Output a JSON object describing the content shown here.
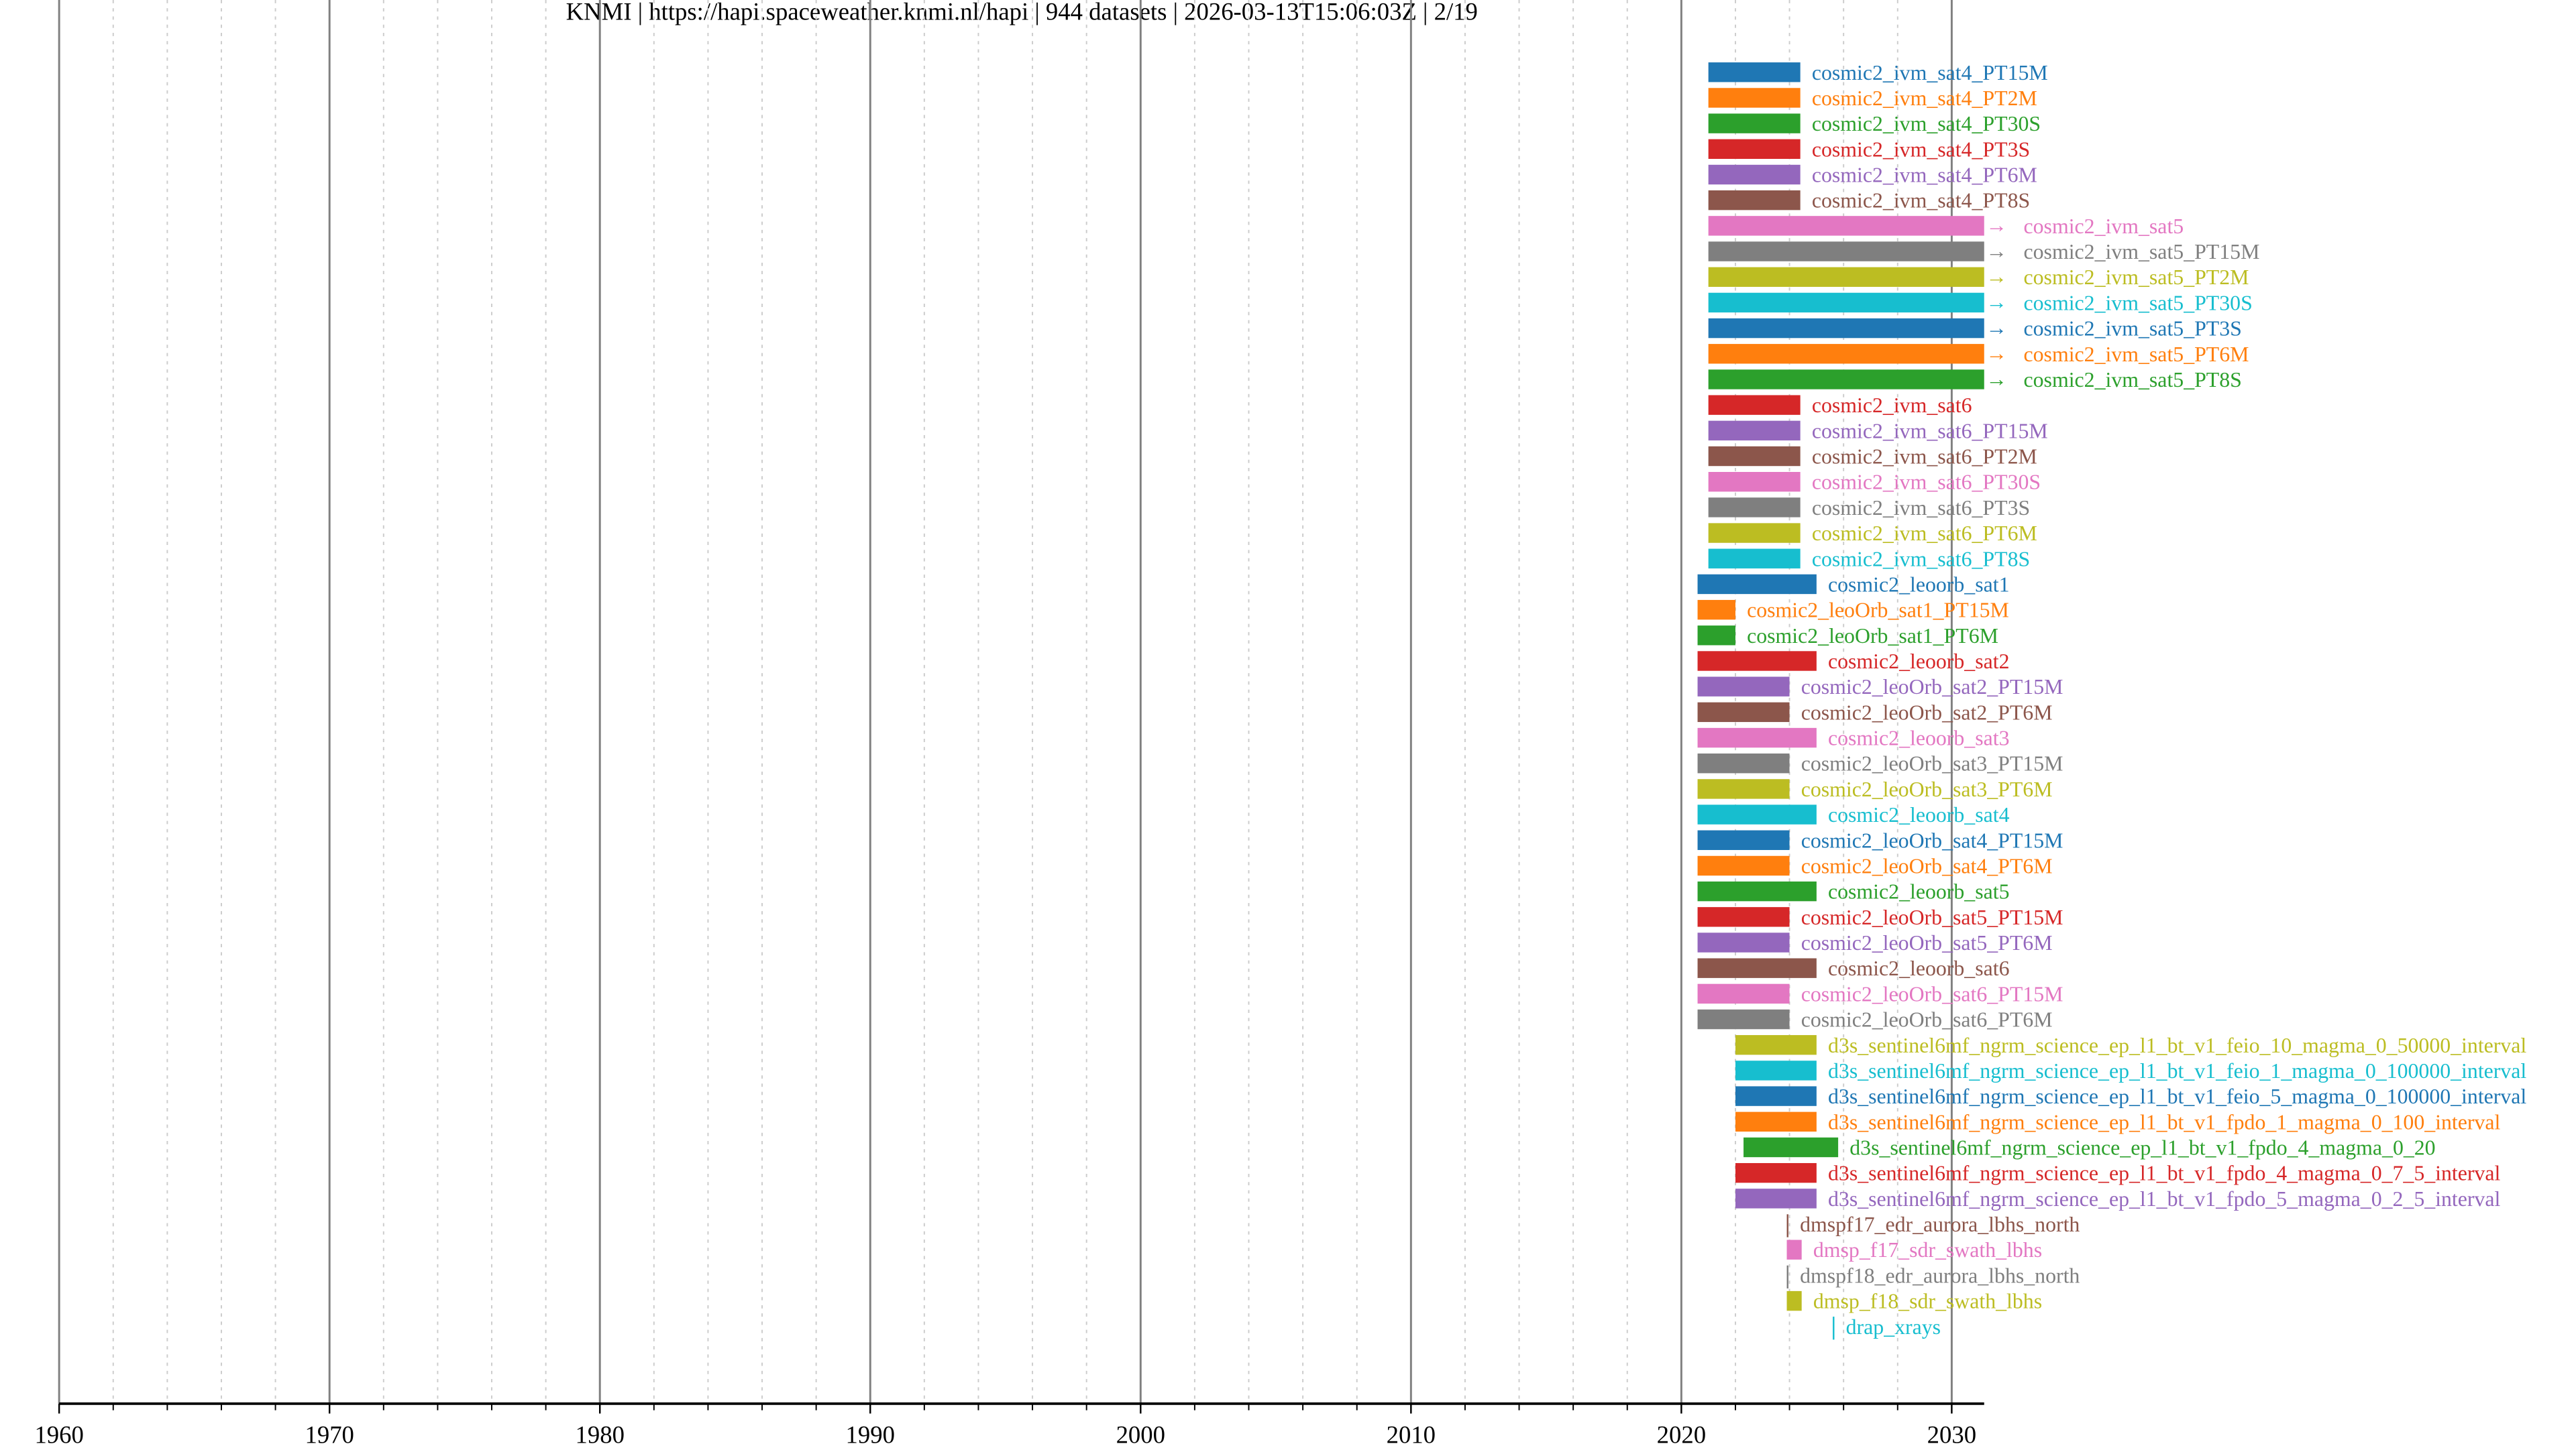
{
  "chart_data": {
    "type": "timeline",
    "title": "KNMI | https://hapi.spaceweather.knmi.nl/hapi | 944 datasets | 2026-03-13T15:06:03Z | 2/19",
    "xlabel": "",
    "ylabel": "",
    "xlim": [
      1960,
      2031.2
    ],
    "major_ticks": [
      1960,
      1970,
      1980,
      1990,
      2000,
      2010,
      2020,
      2030
    ],
    "tick_labels": [
      "1960",
      "1970",
      "1980",
      "1990",
      "2000",
      "2010",
      "2020",
      "2030"
    ],
    "minor_step": 2,
    "grid": true,
    "colors": [
      "#1f77b4",
      "#ff7f0e",
      "#2ca02c",
      "#d62728",
      "#9467bd",
      "#8c564b",
      "#e377c2",
      "#7f7f7f",
      "#bcbd22",
      "#17becf"
    ],
    "series": [
      {
        "name": "cosmic2_ivm_sat4_PT15M",
        "start": 2021.0,
        "stop": 2024.4,
        "ongoing": false
      },
      {
        "name": "cosmic2_ivm_sat4_PT2M",
        "start": 2021.0,
        "stop": 2024.4,
        "ongoing": false
      },
      {
        "name": "cosmic2_ivm_sat4_PT30S",
        "start": 2021.0,
        "stop": 2024.4,
        "ongoing": false
      },
      {
        "name": "cosmic2_ivm_sat4_PT3S",
        "start": 2021.0,
        "stop": 2024.4,
        "ongoing": false
      },
      {
        "name": "cosmic2_ivm_sat4_PT6M",
        "start": 2021.0,
        "stop": 2024.4,
        "ongoing": false
      },
      {
        "name": "cosmic2_ivm_sat4_PT8S",
        "start": 2021.0,
        "stop": 2024.4,
        "ongoing": false
      },
      {
        "name": "cosmic2_ivm_sat5",
        "start": 2021.0,
        "stop": 2031.2,
        "ongoing": true
      },
      {
        "name": "cosmic2_ivm_sat5_PT15M",
        "start": 2021.0,
        "stop": 2031.2,
        "ongoing": true
      },
      {
        "name": "cosmic2_ivm_sat5_PT2M",
        "start": 2021.0,
        "stop": 2031.2,
        "ongoing": true
      },
      {
        "name": "cosmic2_ivm_sat5_PT30S",
        "start": 2021.0,
        "stop": 2031.2,
        "ongoing": true
      },
      {
        "name": "cosmic2_ivm_sat5_PT3S",
        "start": 2021.0,
        "stop": 2031.2,
        "ongoing": true
      },
      {
        "name": "cosmic2_ivm_sat5_PT6M",
        "start": 2021.0,
        "stop": 2031.2,
        "ongoing": true
      },
      {
        "name": "cosmic2_ivm_sat5_PT8S",
        "start": 2021.0,
        "stop": 2031.2,
        "ongoing": true
      },
      {
        "name": "cosmic2_ivm_sat6",
        "start": 2021.0,
        "stop": 2024.4,
        "ongoing": false
      },
      {
        "name": "cosmic2_ivm_sat6_PT15M",
        "start": 2021.0,
        "stop": 2024.4,
        "ongoing": false
      },
      {
        "name": "cosmic2_ivm_sat6_PT2M",
        "start": 2021.0,
        "stop": 2024.4,
        "ongoing": false
      },
      {
        "name": "cosmic2_ivm_sat6_PT30S",
        "start": 2021.0,
        "stop": 2024.4,
        "ongoing": false
      },
      {
        "name": "cosmic2_ivm_sat6_PT3S",
        "start": 2021.0,
        "stop": 2024.4,
        "ongoing": false
      },
      {
        "name": "cosmic2_ivm_sat6_PT6M",
        "start": 2021.0,
        "stop": 2024.4,
        "ongoing": false
      },
      {
        "name": "cosmic2_ivm_sat6_PT8S",
        "start": 2021.0,
        "stop": 2024.4,
        "ongoing": false
      },
      {
        "name": "cosmic2_leoorb_sat1",
        "start": 2020.6,
        "stop": 2025.0,
        "ongoing": false
      },
      {
        "name": "cosmic2_leoOrb_sat1_PT15M",
        "start": 2020.6,
        "stop": 2022.0,
        "ongoing": false
      },
      {
        "name": "cosmic2_leoOrb_sat1_PT6M",
        "start": 2020.6,
        "stop": 2022.0,
        "ongoing": false
      },
      {
        "name": "cosmic2_leoorb_sat2",
        "start": 2020.6,
        "stop": 2025.0,
        "ongoing": false
      },
      {
        "name": "cosmic2_leoOrb_sat2_PT15M",
        "start": 2020.6,
        "stop": 2024.0,
        "ongoing": false
      },
      {
        "name": "cosmic2_leoOrb_sat2_PT6M",
        "start": 2020.6,
        "stop": 2024.0,
        "ongoing": false
      },
      {
        "name": "cosmic2_leoorb_sat3",
        "start": 2020.6,
        "stop": 2025.0,
        "ongoing": false
      },
      {
        "name": "cosmic2_leoOrb_sat3_PT15M",
        "start": 2020.6,
        "stop": 2024.0,
        "ongoing": false
      },
      {
        "name": "cosmic2_leoOrb_sat3_PT6M",
        "start": 2020.6,
        "stop": 2024.0,
        "ongoing": false
      },
      {
        "name": "cosmic2_leoorb_sat4",
        "start": 2020.6,
        "stop": 2025.0,
        "ongoing": false
      },
      {
        "name": "cosmic2_leoOrb_sat4_PT15M",
        "start": 2020.6,
        "stop": 2024.0,
        "ongoing": false
      },
      {
        "name": "cosmic2_leoOrb_sat4_PT6M",
        "start": 2020.6,
        "stop": 2024.0,
        "ongoing": false
      },
      {
        "name": "cosmic2_leoorb_sat5",
        "start": 2020.6,
        "stop": 2025.0,
        "ongoing": false
      },
      {
        "name": "cosmic2_leoOrb_sat5_PT15M",
        "start": 2020.6,
        "stop": 2024.0,
        "ongoing": false
      },
      {
        "name": "cosmic2_leoOrb_sat5_PT6M",
        "start": 2020.6,
        "stop": 2024.0,
        "ongoing": false
      },
      {
        "name": "cosmic2_leoorb_sat6",
        "start": 2020.6,
        "stop": 2025.0,
        "ongoing": false
      },
      {
        "name": "cosmic2_leoOrb_sat6_PT15M",
        "start": 2020.6,
        "stop": 2024.0,
        "ongoing": false
      },
      {
        "name": "cosmic2_leoOrb_sat6_PT6M",
        "start": 2020.6,
        "stop": 2024.0,
        "ongoing": false
      },
      {
        "name": "d3s_sentinel6mf_ngrm_science_ep_l1_bt_v1_feio_10_magma_0_50000_interval",
        "start": 2022.0,
        "stop": 2025.0,
        "ongoing": false
      },
      {
        "name": "d3s_sentinel6mf_ngrm_science_ep_l1_bt_v1_feio_1_magma_0_100000_interval",
        "start": 2022.0,
        "stop": 2025.0,
        "ongoing": false
      },
      {
        "name": "d3s_sentinel6mf_ngrm_science_ep_l1_bt_v1_feio_5_magma_0_100000_interval",
        "start": 2022.0,
        "stop": 2025.0,
        "ongoing": false
      },
      {
        "name": "d3s_sentinel6mf_ngrm_science_ep_l1_bt_v1_fpdo_1_magma_0_100_interval",
        "start": 2022.0,
        "stop": 2025.0,
        "ongoing": false
      },
      {
        "name": "d3s_sentinel6mf_ngrm_science_ep_l1_bt_v1_fpdo_4_magma_0_20",
        "start": 2022.3,
        "stop": 2025.8,
        "ongoing": false
      },
      {
        "name": "d3s_sentinel6mf_ngrm_science_ep_l1_bt_v1_fpdo_4_magma_0_7_5_interval",
        "start": 2022.0,
        "stop": 2025.0,
        "ongoing": false
      },
      {
        "name": "d3s_sentinel6mf_ngrm_science_ep_l1_bt_v1_fpdo_5_magma_0_2_5_interval",
        "start": 2022.0,
        "stop": 2025.0,
        "ongoing": false
      },
      {
        "name": "dmspf17_edr_aurora_lbhs_north",
        "start": 2023.9,
        "stop": 2023.95,
        "ongoing": false
      },
      {
        "name": "dmsp_f17_sdr_swath_lbhs",
        "start": 2023.9,
        "stop": 2024.45,
        "ongoing": false
      },
      {
        "name": "dmspf18_edr_aurora_lbhs_north",
        "start": 2023.9,
        "stop": 2023.93,
        "ongoing": false
      },
      {
        "name": "dmsp_f18_sdr_swath_lbhs",
        "start": 2023.9,
        "stop": 2024.45,
        "ongoing": false
      },
      {
        "name": "drap_xrays",
        "start": 2025.6,
        "stop": 2025.62,
        "ongoing": false
      }
    ]
  }
}
